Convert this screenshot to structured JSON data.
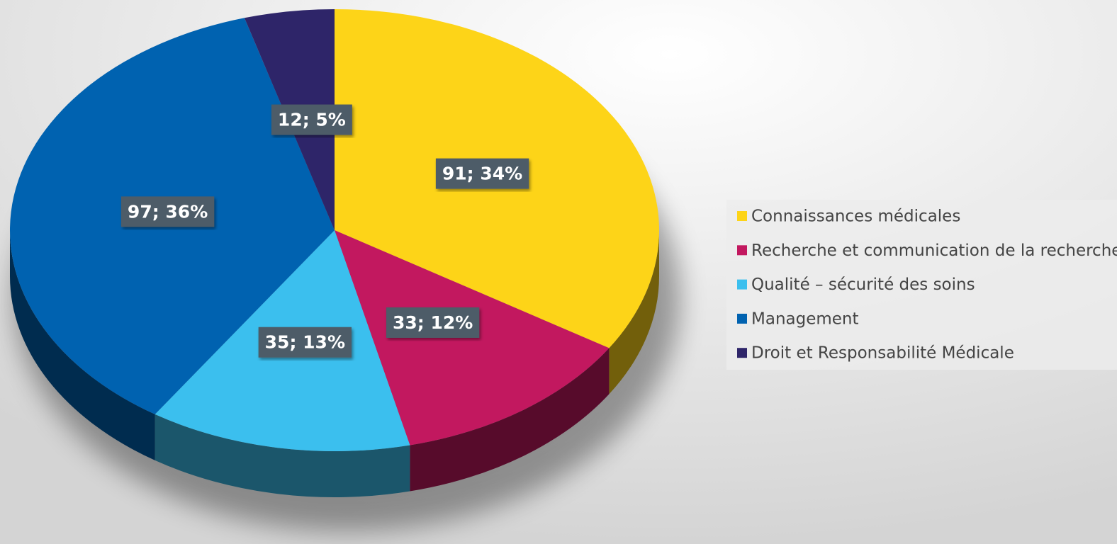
{
  "chart_data": {
    "type": "pie3d",
    "categories": [
      "Connaissances médicales",
      "Recherche et communication de la recherche",
      "Qualité – sécurité des soins",
      "Management",
      "Droit et Responsabilité Médicale"
    ],
    "values": [
      91,
      33,
      35,
      97,
      12
    ],
    "value_labels": [
      "91; 34%",
      "33; 12%",
      "35; 13%",
      "97; 36%",
      "12; 5%"
    ],
    "colors": [
      "#fdd418",
      "#c2185f",
      "#3bbfee",
      "#0062b0",
      "#2e2569"
    ],
    "legend": "right"
  }
}
